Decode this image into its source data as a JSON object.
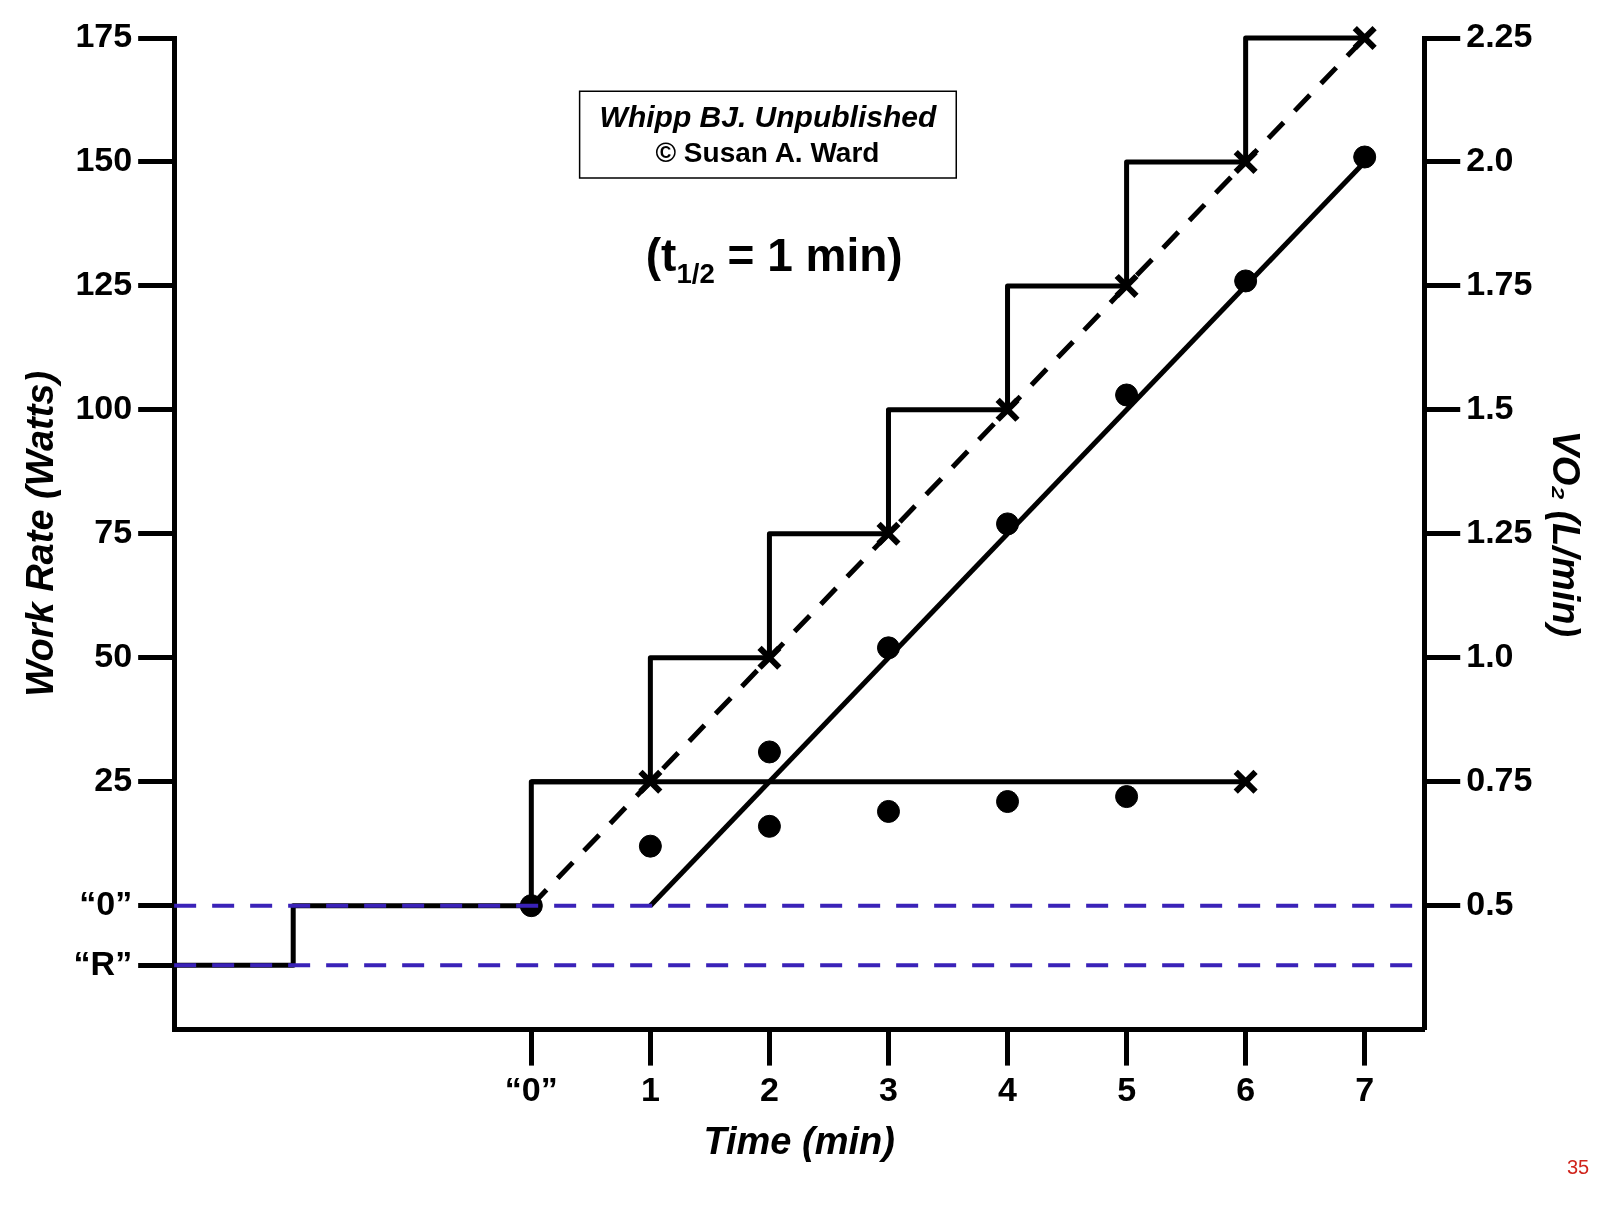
{
  "chart_data": {
    "type": "line",
    "xlabel": "Time (min)",
    "ylabel": "Work Rate (Watts)",
    "y2label": "VO₂ (L/min)",
    "xlim": [
      -3,
      7.5
    ],
    "xticks": [
      {
        "value": 0,
        "label": "“0”"
      },
      1,
      2,
      3,
      4,
      5,
      6,
      7
    ],
    "ylim": [
      -25,
      175
    ],
    "yticks": [
      {
        "value": -12,
        "label": "“R”"
      },
      {
        "value": 0,
        "label": "“0”"
      },
      25,
      50,
      75,
      100,
      125,
      150,
      175
    ],
    "y2lim": [
      0.25,
      2.25
    ],
    "y2ticks": [
      0.5,
      0.75,
      {
        "value": 1,
        "label": "1.0"
      },
      1.25,
      1.5,
      1.75,
      {
        "value": 2,
        "label": "2.0"
      },
      2.25
    ],
    "grid": false,
    "legend": false,
    "series": [
      {
        "type": "step",
        "color": "#000000",
        "x": [
          -3,
          -2,
          0,
          1,
          2,
          3,
          4,
          5,
          6,
          7
        ],
        "values": [
          -12,
          0,
          25,
          50,
          75,
          100,
          125,
          150,
          175,
          175
        ]
      },
      {
        "type": "line",
        "color": "#000000",
        "x": [
          0,
          6
        ],
        "values": [
          25,
          25
        ]
      },
      {
        "type": "line",
        "color": "#000000",
        "line_style": "dashed",
        "x": [
          0,
          7
        ],
        "values": [
          0,
          175
        ]
      },
      {
        "type": "scatter",
        "color": "#000000",
        "marker": "cross",
        "x": [
          1,
          2,
          3,
          4,
          5,
          6,
          7,
          6
        ],
        "values": [
          25,
          50,
          75,
          100,
          125,
          150,
          175,
          25
        ]
      },
      {
        "type": "line",
        "color": "#000000",
        "axis": "y2",
        "x": [
          1,
          7
        ],
        "values": [
          0.5,
          2.0
        ]
      },
      {
        "type": "scatter",
        "color": "#000000",
        "marker": "circle",
        "axis": "y2",
        "x": [
          0,
          1,
          2,
          3,
          4,
          5,
          6,
          7
        ],
        "values": [
          0.5,
          0.62,
          0.81,
          1.02,
          1.27,
          1.53,
          1.76,
          2.01
        ]
      },
      {
        "type": "scatter",
        "color": "#000000",
        "marker": "circle",
        "axis": "y2",
        "x": [
          2,
          3,
          4,
          5
        ],
        "values": [
          0.66,
          0.69,
          0.71,
          0.72
        ]
      }
    ],
    "ref_lines": [
      {
        "axis": "y",
        "value": 0,
        "color": "#3a22b8",
        "line_style": "dashed"
      },
      {
        "axis": "y",
        "value": -12,
        "color": "#3a22b8",
        "line_style": "dashed"
      }
    ],
    "annotations": [
      "Whipp BJ. Unpublished",
      "© Susan A. Ward",
      "(t$_{1/2}$ = 1 min)",
      "35"
    ]
  }
}
